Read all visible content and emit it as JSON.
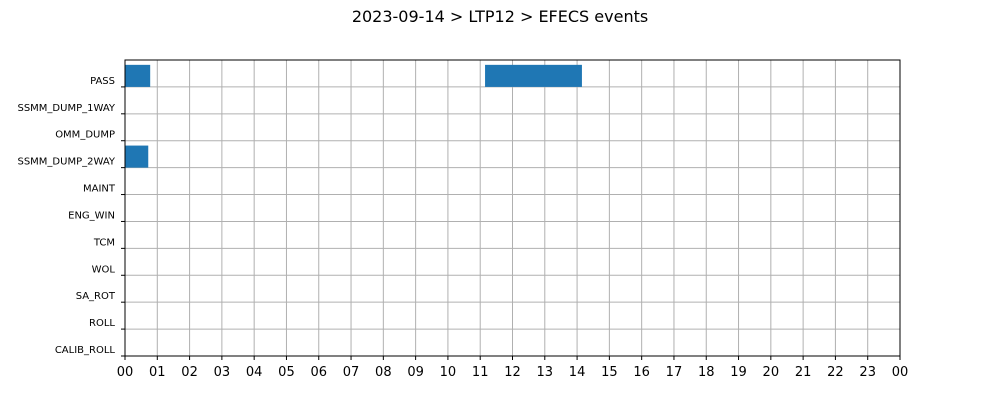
{
  "colors": {
    "bar": "#1f77b4",
    "grid": "#b0b0b0",
    "axis": "#000000",
    "background": "#ffffff"
  },
  "chart_data": {
    "type": "bar",
    "orientation": "horizontal-timeline",
    "title": "2023-09-14 > LTP12 > EFECS events",
    "xlabel": "",
    "ylabel": "",
    "xlim": [
      0,
      24
    ],
    "x_ticks": [
      "00",
      "01",
      "02",
      "03",
      "04",
      "05",
      "06",
      "07",
      "08",
      "09",
      "10",
      "11",
      "12",
      "13",
      "14",
      "15",
      "16",
      "17",
      "18",
      "19",
      "20",
      "21",
      "22",
      "23",
      "00"
    ],
    "categories": [
      "PASS",
      "SSMM_DUMP_1WAY",
      "OMM_DUMP",
      "SSMM_DUMP_2WAY",
      "MAINT",
      "ENG_WIN",
      "TCM",
      "WOL",
      "SA_ROT",
      "ROLL",
      "CALIB_ROLL"
    ],
    "grid": true,
    "legend": "none",
    "events": [
      {
        "category": "PASS",
        "start": 0.0,
        "end": 0.78
      },
      {
        "category": "PASS",
        "start": 11.15,
        "end": 14.15
      },
      {
        "category": "SSMM_DUMP_2WAY",
        "start": 0.0,
        "end": 0.72
      }
    ]
  }
}
